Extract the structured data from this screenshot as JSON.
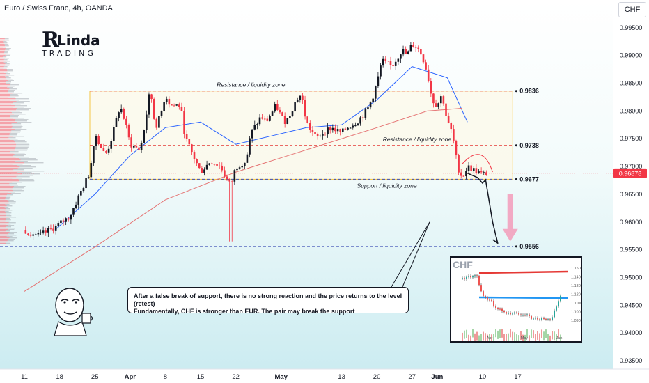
{
  "header": {
    "symbol_title": "Euro / Swiss Franc, 4h, OANDA",
    "currency_button": "CHF"
  },
  "logo": {
    "big_letter": "R",
    "word": "Linda",
    "sub": "TRADING"
  },
  "colors": {
    "bull": "#131722",
    "bear": "#f23645",
    "ma_fast": "#2962ff",
    "ma_slow": "#e57373",
    "zone_fill": "#fff8e1",
    "zone_border": "#f5c542",
    "resistance_line": "#e53935",
    "support_line": "#3f51b5",
    "price_tag": "#f23645"
  },
  "chart_data": {
    "type": "candlestick",
    "title": "Euro / Swiss Franc, 4h, OANDA",
    "y_axis": {
      "range": [
        0.9335,
        1.0
      ],
      "ticks": [
        "0.99500",
        "0.99000",
        "0.98500",
        "0.98000",
        "0.97500",
        "0.97000",
        "0.96500",
        "0.96000",
        "0.95500",
        "0.95000",
        "0.94500",
        "0.94000",
        "0.93500"
      ],
      "tick_values": [
        0.995,
        0.99,
        0.985,
        0.98,
        0.975,
        0.97,
        0.965,
        0.96,
        0.955,
        0.95,
        0.945,
        0.94,
        0.935
      ]
    },
    "x_axis": {
      "ticks": [
        "11",
        "18",
        "25",
        "Apr",
        "8",
        "15",
        "22",
        "May",
        "13",
        "20",
        "27",
        "Jun",
        "10",
        "17"
      ],
      "tick_days": [
        0,
        7,
        14,
        21,
        28,
        35,
        42,
        51,
        63,
        70,
        77,
        82,
        91,
        98
      ],
      "bold_ticks": [
        "Apr",
        "May",
        "Jun"
      ]
    },
    "price_path": [
      [
        0,
        0.9585
      ],
      [
        3,
        0.9575
      ],
      [
        6,
        0.959
      ],
      [
        9,
        0.961
      ],
      [
        11,
        0.965
      ],
      [
        13,
        0.969
      ],
      [
        14,
        0.976
      ],
      [
        16,
        0.972
      ],
      [
        17,
        0.974
      ],
      [
        19,
        0.981
      ],
      [
        20,
        0.978
      ],
      [
        21,
        0.974
      ],
      [
        23,
        0.973
      ],
      [
        24,
        0.978
      ],
      [
        25,
        0.984
      ],
      [
        26,
        0.977
      ],
      [
        27,
        0.979
      ],
      [
        28,
        0.983
      ],
      [
        29,
        0.981
      ],
      [
        31,
        0.981
      ],
      [
        32,
        0.975
      ],
      [
        33,
        0.973
      ],
      [
        34,
        0.971
      ],
      [
        35,
        0.969
      ],
      [
        36,
        0.97
      ],
      [
        37,
        0.971
      ],
      [
        39,
        0.97
      ],
      [
        40,
        0.968
      ],
      [
        41,
        0.9665
      ],
      [
        42,
        0.97
      ],
      [
        44,
        0.971
      ],
      [
        45,
        0.976
      ],
      [
        47,
        0.979
      ],
      [
        48,
        0.978
      ],
      [
        50,
        0.981
      ],
      [
        51,
        0.979
      ],
      [
        52,
        0.978
      ],
      [
        53,
        0.98
      ],
      [
        54,
        0.982
      ],
      [
        55,
        0.983
      ],
      [
        56,
        0.978
      ],
      [
        58,
        0.975
      ],
      [
        59,
        0.976
      ],
      [
        61,
        0.977
      ],
      [
        63,
        0.976
      ],
      [
        64,
        0.977
      ],
      [
        66,
        0.978
      ],
      [
        68,
        0.98
      ],
      [
        69,
        0.982
      ],
      [
        70,
        0.985
      ],
      [
        71,
        0.989
      ],
      [
        73,
        0.988
      ],
      [
        75,
        0.991
      ],
      [
        76,
        0.99
      ],
      [
        77,
        0.992
      ],
      [
        78,
        0.9915
      ],
      [
        79,
        0.99
      ],
      [
        80,
        0.987
      ],
      [
        81,
        0.982
      ],
      [
        82,
        0.981
      ],
      [
        83,
        0.983
      ],
      [
        84,
        0.978
      ],
      [
        85,
        0.976
      ],
      [
        86,
        0.97
      ],
      [
        87,
        0.968
      ],
      [
        88,
        0.97
      ],
      [
        89,
        0.9695
      ],
      [
        90,
        0.969
      ],
      [
        91,
        0.9685
      ],
      [
        92,
        0.9688
      ]
    ],
    "false_break_wick": {
      "day": 41,
      "low": 0.9565
    },
    "moving_averages": [
      {
        "points": [
          [
            6,
            0.9585
          ],
          [
            14,
            0.965
          ],
          [
            21,
            0.972
          ],
          [
            28,
            0.977
          ],
          [
            35,
            0.978
          ],
          [
            42,
            0.974
          ],
          [
            49,
            0.9755
          ],
          [
            56,
            0.977
          ],
          [
            63,
            0.9775
          ],
          [
            70,
            0.982
          ],
          [
            77,
            0.988
          ],
          [
            84,
            0.986
          ],
          [
            88,
            0.978
          ]
        ]
      },
      {
        "points": [
          [
            0,
            0.9475
          ],
          [
            14,
            0.9555
          ],
          [
            28,
            0.964
          ],
          [
            42,
            0.969
          ],
          [
            56,
            0.973
          ],
          [
            70,
            0.977
          ],
          [
            80,
            0.98
          ],
          [
            87,
            0.9805
          ]
        ]
      }
    ],
    "zone": {
      "from_day": 13,
      "to_day": 97,
      "top": 0.9836,
      "bottom": 0.9677
    },
    "levels": [
      {
        "value": 0.9836,
        "label": "0.9836",
        "style": "resistance",
        "zone_text": "Resistance / liquidity zone"
      },
      {
        "value": 0.9738,
        "label": "0.9738",
        "style": "resistance",
        "zone_text": "Resistance / liquidity zone"
      },
      {
        "value": 0.9677,
        "label": "0.9677",
        "style": "support",
        "zone_text": "Support / liquidity zone"
      },
      {
        "value": 0.9556,
        "label": "0.9556",
        "style": "support",
        "zone_text": ""
      }
    ],
    "last_price": "0.96878",
    "last_price_value": 0.96878,
    "projection": [
      [
        88,
        0.9688
      ],
      [
        90,
        0.968
      ],
      [
        91,
        0.967
      ],
      [
        91.6,
        0.9676
      ],
      [
        93,
        0.96
      ],
      [
        94,
        0.9562
      ]
    ]
  },
  "note": {
    "line1": "After a false break of support, there is no strong reaction and the price returns to the level (retest)",
    "line2": "Fundamentally, CHF is stronger than EUR. The pair may break the support"
  },
  "inset": {
    "title": "CHF",
    "ticks": [
      "1.1500",
      "1.1400",
      "1.1300",
      "1.1200",
      "1.1100",
      "1.1000",
      "1.0900"
    ],
    "x_labels": [
      "Apr",
      "May",
      "Jun"
    ]
  }
}
